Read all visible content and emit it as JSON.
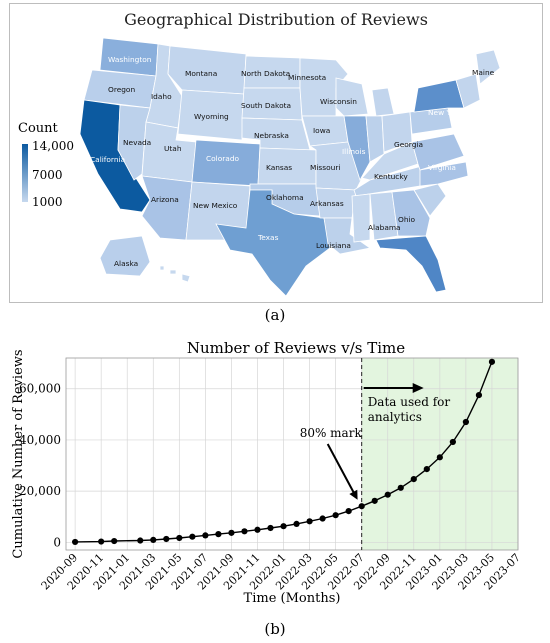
{
  "map": {
    "title": "Geographical Distribution of Reviews",
    "legend": {
      "title": "Count",
      "ticks": [
        "14,000",
        "7000",
        "1000"
      ]
    },
    "colors": {
      "low": "#c6d8ee",
      "mid": "#6f9fd2",
      "high": "#0c5aa0"
    },
    "state_labels": [
      "Washington",
      "Oregon",
      "California",
      "Idaho",
      "Montana",
      "Nevada",
      "Utah",
      "Arizona",
      "Wyoming",
      "Colorado",
      "New Mexico",
      "North Dakota",
      "South Dakota",
      "Nebraska",
      "Kansas",
      "Oklahoma",
      "Texas",
      "Minnesota",
      "Iowa",
      "Missouri",
      "Arkansas",
      "Louisiana",
      "Wisconsin",
      "Illinois",
      "Kentucky",
      "Alabama",
      "Ohio",
      "Georgia",
      "Virginia",
      "New York",
      "Maine",
      "Alaska"
    ]
  },
  "caption_a": "(a)",
  "caption_b": "(b)",
  "chart_data": {
    "type": "line",
    "title": "Number of Reviews v/s Time",
    "xlabel": "Time (Months)",
    "ylabel": "Cumulative Number of Reviews",
    "ylim": [
      0,
      72000
    ],
    "yticks": [
      0,
      20000,
      40000,
      60000
    ],
    "ytick_labels": [
      "0",
      "20,000",
      "40,000",
      "60,000"
    ],
    "xticks": [
      "2020-09",
      "2020-11",
      "2021-01",
      "2021-03",
      "2021-05",
      "2021-07",
      "2021-09",
      "2021-11",
      "2022-01",
      "2022-03",
      "2022-05",
      "2022-07",
      "2022-09",
      "2022-11",
      "2023-01",
      "2023-03",
      "2023-05",
      "2023-07"
    ],
    "x": [
      "2020-09",
      "2020-11",
      "2020-12",
      "2021-02",
      "2021-03",
      "2021-04",
      "2021-05",
      "2021-06",
      "2021-07",
      "2021-08",
      "2021-09",
      "2021-10",
      "2021-11",
      "2021-12",
      "2022-01",
      "2022-02",
      "2022-03",
      "2022-04",
      "2022-05",
      "2022-06",
      "2022-07",
      "2022-08",
      "2022-09",
      "2022-10",
      "2022-11",
      "2022-12",
      "2023-01",
      "2023-02",
      "2023-03",
      "2023-04",
      "2023-05"
    ],
    "values": [
      150,
      300,
      500,
      700,
      950,
      1300,
      1700,
      2200,
      2700,
      3200,
      3700,
      4300,
      4900,
      5600,
      6300,
      7200,
      8200,
      9300,
      10600,
      12200,
      14100,
      16200,
      18600,
      21300,
      24700,
      28600,
      33200,
      39200,
      47000,
      57500,
      70500
    ],
    "cutoff": "2022-07",
    "annotations": {
      "mark": "80% mark",
      "region_line1": "Data used for",
      "region_line2": "analytics"
    },
    "colors": {
      "line": "#000000",
      "shade": "#e3f5df",
      "grid": "#d6d6d6"
    }
  }
}
